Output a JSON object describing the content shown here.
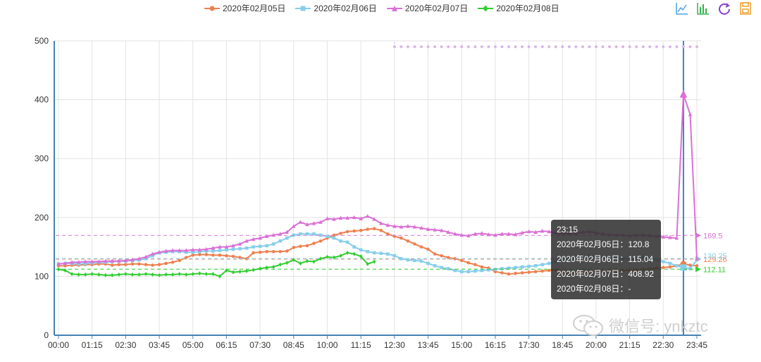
{
  "legend": {
    "items": [
      {
        "label": "2020年02月05日",
        "color": "#ee8050",
        "marker": "circle"
      },
      {
        "label": "2020年02月06日",
        "color": "#87ceeb",
        "marker": "square"
      },
      {
        "label": "2020年02月07日",
        "color": "#da70d6",
        "marker": "triangle"
      },
      {
        "label": "2020年02月08日",
        "color": "#32cd32",
        "marker": "diamond"
      }
    ]
  },
  "toolbox": {
    "icons": [
      "line-chart-icon",
      "bar-chart-icon",
      "restore-icon",
      "save-image-icon"
    ]
  },
  "tooltip": {
    "title": "23:15",
    "rows": [
      "2020年02月05日：120.8",
      "2020年02月06日：115.04",
      "2020年02月07日：408.92",
      "2020年02月08日：-"
    ]
  },
  "watermark": {
    "text": "微信号: ynkztc"
  },
  "chart_data": {
    "type": "line",
    "ylim": [
      0,
      500
    ],
    "yticks": [
      0,
      100,
      200,
      300,
      400,
      500
    ],
    "grid": true,
    "legend_position": "top-center",
    "x_tick_labels": [
      "00:00",
      "01:15",
      "02:30",
      "03:45",
      "05:00",
      "06:15",
      "07:30",
      "08:45",
      "10:00",
      "11:15",
      "12:30",
      "13:45",
      "15:00",
      "16:15",
      "17:30",
      "18:45",
      "20:00",
      "21:15",
      "22:30",
      "23:45"
    ],
    "x_interval_minutes": 15,
    "num_points": 96,
    "series": [
      {
        "name": "2020年02月05日",
        "values": [
          118,
          118,
          119,
          119,
          120,
          120,
          121,
          121,
          119,
          120,
          120,
          121,
          121,
          120,
          119,
          120,
          122,
          124,
          127,
          132,
          136,
          137,
          137,
          136,
          136,
          135,
          134,
          132,
          130,
          140,
          141,
          142,
          142,
          142,
          143,
          149,
          151,
          152,
          156,
          160,
          165,
          170,
          173,
          176,
          177,
          178,
          180,
          181,
          178,
          172,
          168,
          165,
          160,
          155,
          150,
          146,
          138,
          135,
          132,
          130,
          127,
          123,
          120,
          116,
          114,
          108,
          106,
          104,
          105,
          106,
          107,
          108,
          109,
          110,
          111,
          108,
          104,
          106,
          108,
          107,
          108,
          108,
          108,
          109,
          110,
          110,
          111,
          112,
          113,
          114,
          115,
          116,
          118,
          120.8,
          119,
          118
        ],
        "mark_line": 129.26,
        "mark_label": "129.26"
      },
      {
        "name": "2020年02月06日",
        "values": [
          121,
          122,
          122,
          121,
          122,
          123,
          124,
          124,
          125,
          126,
          126,
          127,
          128,
          130,
          135,
          140,
          141,
          142,
          142,
          141,
          141,
          142,
          143,
          143,
          144,
          145,
          146,
          147,
          148,
          150,
          151,
          152,
          155,
          160,
          165,
          170,
          172,
          172,
          172,
          170,
          168,
          165,
          160,
          158,
          150,
          145,
          142,
          140,
          139,
          138,
          135,
          130,
          128,
          127,
          126,
          122,
          118,
          115,
          113,
          110,
          108,
          108,
          109,
          110,
          111,
          112,
          113,
          114,
          115,
          116,
          117,
          118,
          120,
          122,
          125,
          128,
          130,
          132,
          133,
          134,
          133,
          132,
          131,
          130,
          130,
          130,
          131,
          132,
          130,
          128,
          125,
          122,
          118,
          115.04,
          113,
          128
        ],
        "mark_line": 130.25,
        "mark_label": "130.25"
      },
      {
        "name": "2020年02月07日",
        "values": [
          121,
          122,
          124,
          124,
          125,
          125,
          125,
          126,
          126,
          126,
          127,
          128,
          130,
          133,
          138,
          141,
          143,
          144,
          144,
          144,
          145,
          145,
          146,
          148,
          150,
          150,
          152,
          155,
          160,
          163,
          165,
          168,
          170,
          172,
          175,
          185,
          192,
          188,
          190,
          192,
          198,
          197,
          199,
          199,
          200,
          198,
          202,
          197,
          190,
          187,
          185,
          184,
          185,
          184,
          182,
          180,
          179,
          178,
          175,
          172,
          170,
          169,
          172,
          173,
          171,
          170,
          172,
          172,
          171,
          174,
          176,
          175,
          177,
          176,
          174,
          173,
          172,
          173,
          175,
          176,
          174,
          172,
          171,
          170,
          170,
          169,
          170,
          170,
          169,
          168,
          167,
          166,
          165,
          408.92,
          375,
          130
        ],
        "mark_line": 169.5,
        "mark_label": "169.5"
      },
      {
        "name": "2020年02月08日",
        "values": [
          112,
          110,
          104,
          103,
          103,
          104,
          103,
          102,
          102,
          103,
          104,
          103,
          103,
          104,
          103,
          102,
          103,
          103,
          104,
          103,
          104,
          105,
          104,
          104,
          100,
          110,
          107,
          108,
          109,
          111,
          113,
          115,
          116,
          120,
          123,
          128,
          122,
          126,
          125,
          130,
          133,
          132,
          135,
          140,
          138,
          134,
          121,
          125,
          null,
          null,
          null,
          null,
          null,
          null,
          null,
          null,
          null,
          null,
          null,
          null,
          null,
          null,
          null,
          null,
          null,
          null,
          null,
          null,
          null,
          null,
          null,
          null,
          null,
          null,
          null,
          null,
          null,
          null,
          null,
          null,
          null,
          null,
          null,
          null,
          null,
          null,
          null,
          null,
          null,
          null,
          null,
          null,
          null,
          null,
          null,
          null
        ],
        "mark_line": 112.11,
        "mark_label": "112.11"
      }
    ],
    "max_mark_value": 490,
    "max_mark_start_index": 50
  }
}
